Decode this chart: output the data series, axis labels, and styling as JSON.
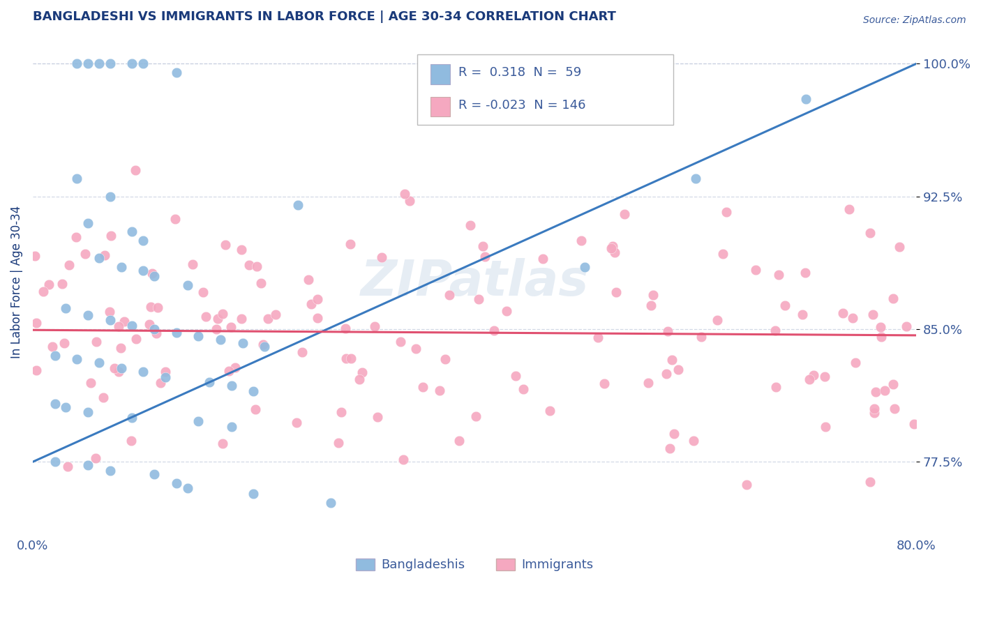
{
  "title": "BANGLADESHI VS IMMIGRANTS IN LABOR FORCE | AGE 30-34 CORRELATION CHART",
  "source_text": "Source: ZipAtlas.com",
  "ylabel": "In Labor Force | Age 30-34",
  "xlim": [
    0.0,
    0.8
  ],
  "ylim": [
    0.735,
    1.018
  ],
  "yticks": [
    0.775,
    0.85,
    0.925,
    1.0
  ],
  "ytick_labels": [
    "77.5%",
    "85.0%",
    "92.5%",
    "100.0%"
  ],
  "xticks": [
    0.0,
    0.1,
    0.2,
    0.3,
    0.4,
    0.5,
    0.6,
    0.7,
    0.8
  ],
  "xtick_labels": [
    "0.0%",
    "",
    "",
    "",
    "",
    "",
    "",
    "",
    "80.0%"
  ],
  "blue_color": "#90bbdf",
  "pink_color": "#f5a8c0",
  "blue_line_color": "#3a7abf",
  "pink_line_color": "#e05070",
  "title_color": "#1a3a7a",
  "axis_label_color": "#1a3a7a",
  "tick_color": "#3a5a9a",
  "watermark": "ZIPatlas",
  "blue_line_x0": 0.0,
  "blue_line_y0": 0.775,
  "blue_line_x1": 0.8,
  "blue_line_y1": 1.0,
  "pink_line_x0": 0.0,
  "pink_line_y0": 0.8495,
  "pink_line_x1": 0.8,
  "pink_line_y1": 0.8465,
  "legend_r_blue": "0.318",
  "legend_n_blue": "59",
  "legend_r_pink": "-0.023",
  "legend_n_pink": "146"
}
